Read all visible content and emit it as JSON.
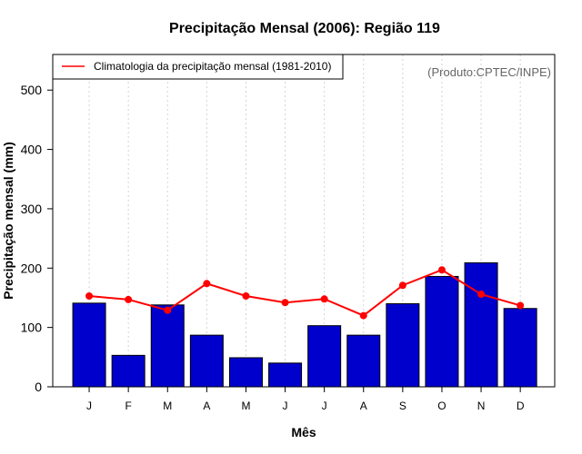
{
  "chart_data": {
    "type": "bar",
    "title": "Precipitação Mensal (2006): Região 119",
    "xlabel": "Mês",
    "ylabel": "Precipitação mensal (mm)",
    "ylim": [
      0,
      560
    ],
    "yticks": [
      0,
      100,
      200,
      300,
      400,
      500
    ],
    "categories": [
      "J",
      "F",
      "M",
      "A",
      "M",
      "J",
      "J",
      "A",
      "S",
      "O",
      "N",
      "D"
    ],
    "series": [
      {
        "name": "Precipitação mensal 2006",
        "kind": "bar",
        "color": "#0000cd",
        "values": [
          141,
          53,
          138,
          87,
          49,
          40,
          103,
          87,
          140,
          186,
          209,
          132
        ]
      },
      {
        "name": "Climatologia da precipitação mensal (1981-2010)",
        "kind": "line",
        "color": "#ff0000",
        "values": [
          153,
          147,
          129,
          174,
          153,
          142,
          148,
          120,
          171,
          197,
          156,
          137
        ]
      }
    ],
    "legend": {
      "placement": "top-left",
      "label": "Climatologia da precipitação mensal (1981-2010)"
    },
    "credit": "(Produto:CPTEC/INPE)",
    "grid": "vertical-dotted"
  }
}
